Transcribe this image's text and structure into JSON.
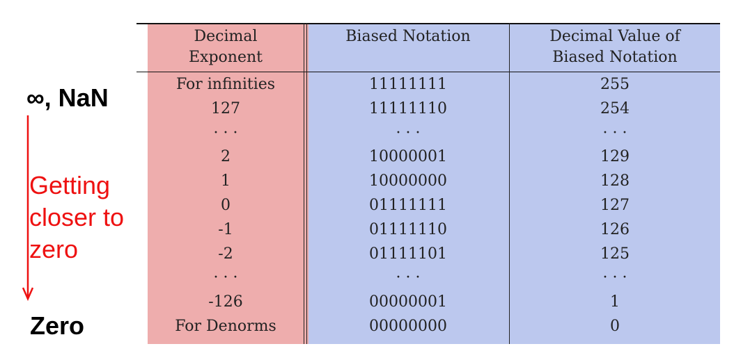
{
  "side_labels": {
    "top": "∞, NaN",
    "progress": [
      "Getting",
      "closer to",
      "zero"
    ],
    "bottom": "Zero"
  },
  "table": {
    "headers": [
      [
        "Decimal",
        "Exponent"
      ],
      [
        "Biased Notation",
        ""
      ],
      [
        "Decimal Value of",
        "Biased Notation"
      ]
    ],
    "rows": [
      [
        "For infinities",
        "11111111",
        "255"
      ],
      [
        "127",
        "11111110",
        "254"
      ],
      [
        "· · ·",
        "· · ·",
        "· · ·"
      ],
      [
        "2",
        "10000001",
        "129"
      ],
      [
        "1",
        "10000000",
        "128"
      ],
      [
        "0",
        "01111111",
        "127"
      ],
      [
        "-1",
        "01111110",
        "126"
      ],
      [
        "-2",
        "01111101",
        "125"
      ],
      [
        "· · ·",
        "· · ·",
        "· · ·"
      ],
      [
        "-126",
        "00000001",
        "1"
      ],
      [
        "For Denorms",
        "00000000",
        "0"
      ]
    ]
  },
  "colors": {
    "exponent_column": "#eeadad",
    "biased_columns": "#bcc8ee",
    "progress_text": "#ee1111",
    "arrow": "#ee1111"
  }
}
